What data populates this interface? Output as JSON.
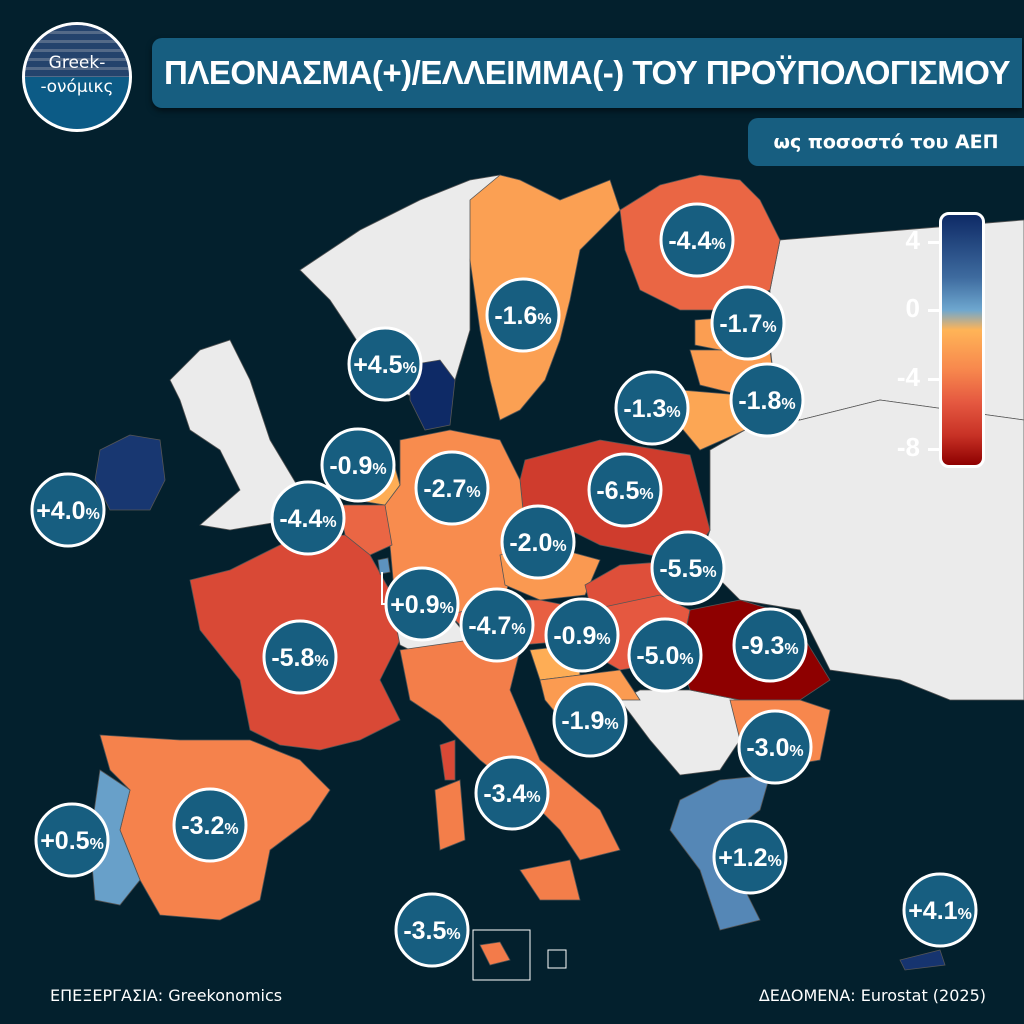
{
  "logo": {
    "line1": "Greek-",
    "line2": "-ονόμικς"
  },
  "title": "ΠΛΕΟΝΑΣΜΑ(+)/ΕΛΛΕΙΜΜΑ(-) ΤΟΥ ΠΡΟΫΠΟΛΟΓΙΣΜΟΥ",
  "subtitle": "ως ποσοστό του ΑΕΠ",
  "legend": {
    "ticks": [
      "4",
      "0",
      "-4",
      "-8"
    ],
    "range": [
      -9.3,
      4.5
    ],
    "colors": {
      "high": "#0e2a66",
      "zero": "#6ea7cf",
      "slightly_negative": "#ffb457",
      "low": "#8e0000"
    }
  },
  "colors": {
    "background": "#03202d",
    "no_data": "#ebebeb",
    "bubble": "#175e80",
    "border": "#ffffff"
  },
  "unit": "%",
  "labels": [
    {
      "value": "-4.4",
      "num": -4.4
    },
    {
      "value": "-1.6",
      "num": -1.6
    },
    {
      "value": "-1.7",
      "num": -1.7
    },
    {
      "value": "+4.5",
      "num": 4.5
    },
    {
      "value": "-1.8",
      "num": -1.8
    },
    {
      "value": "-1.3",
      "num": -1.3
    },
    {
      "value": "-0.9",
      "num": -0.9
    },
    {
      "value": "+4.0",
      "num": 4.0
    },
    {
      "value": "-4.4",
      "num": -4.4
    },
    {
      "value": "-2.7",
      "num": -2.7
    },
    {
      "value": "-6.5",
      "num": -6.5
    },
    {
      "value": "-2.0",
      "num": -2.0
    },
    {
      "value": "-5.5",
      "num": -5.5
    },
    {
      "value": "+0.9",
      "num": 0.9
    },
    {
      "value": "-4.7",
      "num": -4.7
    },
    {
      "value": "-0.9",
      "num": -0.9
    },
    {
      "value": "-5.0",
      "num": -5.0
    },
    {
      "value": "-9.3",
      "num": -9.3
    },
    {
      "value": "-5.8",
      "num": -5.8
    },
    {
      "value": "-1.9",
      "num": -1.9
    },
    {
      "value": "-3.0",
      "num": -3.0
    },
    {
      "value": "-3.4",
      "num": -3.4
    },
    {
      "value": "+0.5",
      "num": 0.5
    },
    {
      "value": "-3.2",
      "num": -3.2
    },
    {
      "value": "+1.2",
      "num": 1.2
    },
    {
      "value": "+4.1",
      "num": 4.1
    },
    {
      "value": "-3.5",
      "num": -3.5
    }
  ],
  "footer": {
    "left": "ΕΠΕΞΕΡΓΑΣΙΑ: Greekonomics",
    "right": "ΔΕΔΟΜΕΝΑ: Eurostat (2025)"
  }
}
